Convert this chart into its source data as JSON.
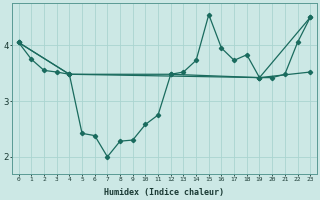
{
  "xlabel": "Humidex (Indice chaleur)",
  "bg_color": "#cce8e5",
  "line_color": "#1a6b5e",
  "grid_color": "#aad4d0",
  "xlim": [
    -0.5,
    23.5
  ],
  "ylim": [
    1.7,
    4.75
  ],
  "yticks": [
    2,
    3,
    4
  ],
  "xticks": [
    0,
    1,
    2,
    3,
    4,
    5,
    6,
    7,
    8,
    9,
    10,
    11,
    12,
    13,
    14,
    15,
    16,
    17,
    18,
    19,
    20,
    21,
    22,
    23
  ],
  "series1": [
    [
      0,
      4.05
    ],
    [
      1,
      3.75
    ],
    [
      2,
      3.55
    ],
    [
      3,
      3.52
    ],
    [
      4,
      3.48
    ],
    [
      5,
      2.42
    ],
    [
      6,
      2.38
    ],
    [
      7,
      2.0
    ],
    [
      8,
      2.28
    ],
    [
      9,
      2.3
    ],
    [
      10,
      2.58
    ],
    [
      11,
      2.75
    ],
    [
      12,
      3.48
    ],
    [
      13,
      3.52
    ],
    [
      14,
      3.73
    ],
    [
      15,
      4.55
    ],
    [
      16,
      3.95
    ],
    [
      17,
      3.73
    ],
    [
      18,
      3.83
    ],
    [
      19,
      3.42
    ],
    [
      20,
      3.42
    ],
    [
      21,
      3.48
    ],
    [
      22,
      4.05
    ],
    [
      23,
      4.5
    ]
  ],
  "series2": [
    [
      0,
      4.05
    ],
    [
      4,
      3.48
    ],
    [
      12,
      3.48
    ],
    [
      19,
      3.42
    ],
    [
      23,
      3.52
    ]
  ],
  "series3": [
    [
      0,
      4.05
    ],
    [
      4,
      3.48
    ],
    [
      19,
      3.42
    ],
    [
      23,
      4.5
    ]
  ]
}
